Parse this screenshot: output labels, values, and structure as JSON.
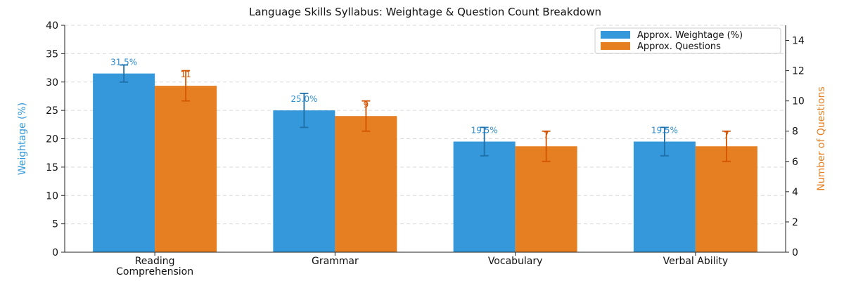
{
  "chart_data": {
    "type": "bar",
    "title": "Language Skills Syllabus: Weightage & Question Count Breakdown",
    "categories": [
      "Reading Comprehension",
      "Grammar",
      "Vocabulary",
      "Verbal Ability"
    ],
    "category_lines": [
      [
        "Reading",
        "Comprehension"
      ],
      [
        "Grammar"
      ],
      [
        "Vocabulary"
      ],
      [
        "Verbal Ability"
      ]
    ],
    "ylabel_left": "Weightage (%)",
    "ylabel_right": "Number of Questions",
    "ylim_left": [
      0,
      40
    ],
    "ylim_right": [
      0,
      15
    ],
    "yticks_left": [
      0,
      5,
      10,
      15,
      20,
      25,
      30,
      35,
      40
    ],
    "yticks_right": [
      0,
      2,
      4,
      6,
      8,
      10,
      12,
      14
    ],
    "grid": "horizontal dashed",
    "legend_position": "top-right",
    "series": [
      {
        "name": "Approx. Weightage (%)",
        "axis": "left",
        "color": "#3498db",
        "label_color": "#2f8fd0",
        "error_color": "#1f6fa8",
        "values": [
          31.5,
          25.0,
          19.5,
          19.5
        ],
        "error_low": [
          30.0,
          22.0,
          17.0,
          17.0
        ],
        "error_high": [
          33.0,
          28.0,
          22.0,
          22.0
        ],
        "labels": [
          "31.5%",
          "25.0%",
          "19.5%",
          "19.5%"
        ]
      },
      {
        "name": "Approx. Questions",
        "axis": "right",
        "color": "#e67e22",
        "label_color": "#d35400",
        "error_color": "#d35400",
        "values": [
          11,
          9,
          7,
          7
        ],
        "error_low": [
          10,
          8,
          6,
          6
        ],
        "error_high": [
          12,
          10,
          8,
          8
        ],
        "labels": [
          "11",
          "9",
          "7",
          "7"
        ]
      }
    ]
  }
}
